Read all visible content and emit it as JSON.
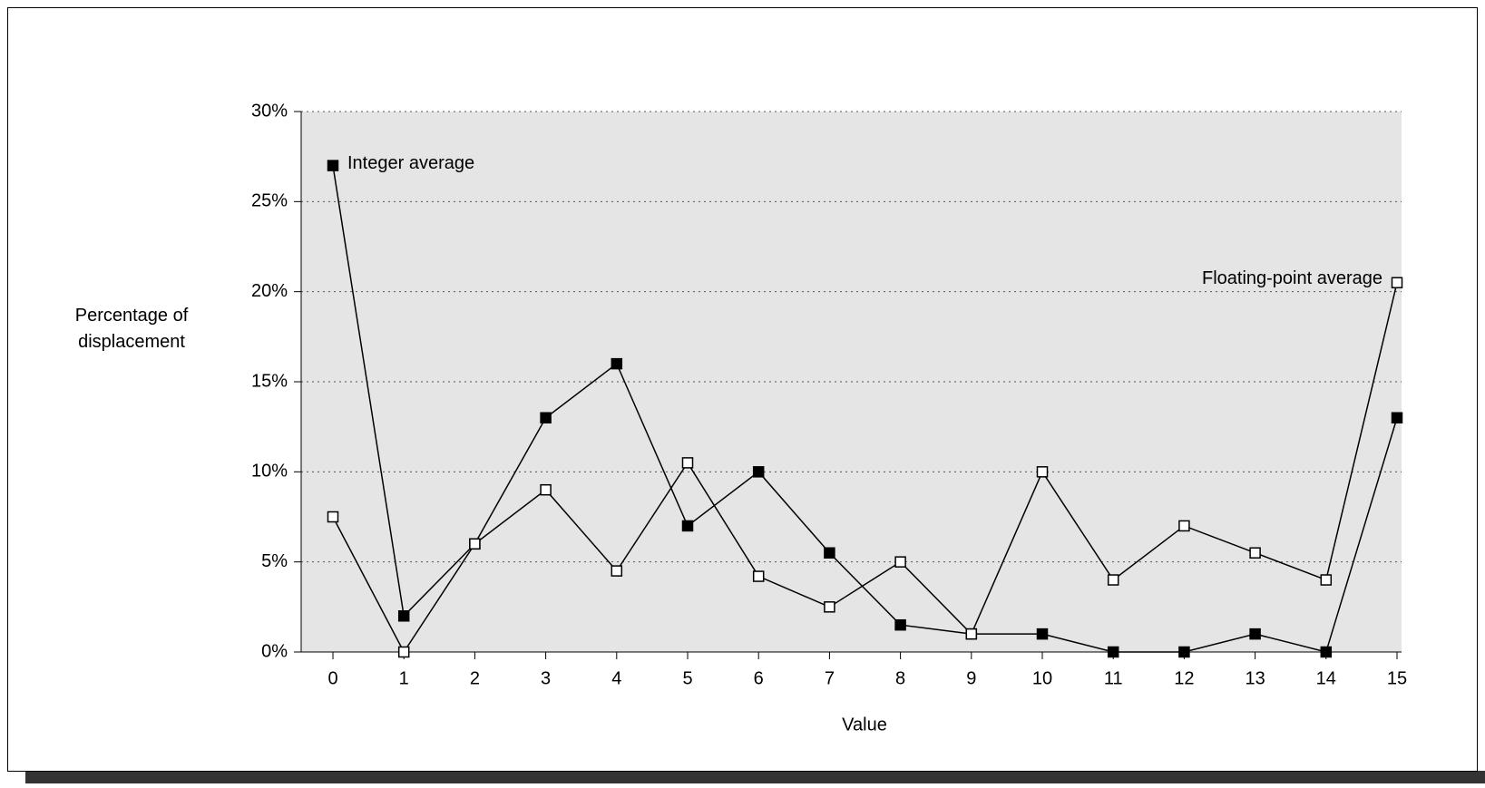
{
  "chart_data": {
    "type": "line",
    "y_label": "Percentage of displacement",
    "x_label": "Value",
    "x": [
      0,
      1,
      2,
      3,
      4,
      5,
      6,
      7,
      8,
      9,
      10,
      11,
      12,
      13,
      14,
      15
    ],
    "xlim": [
      0,
      15
    ],
    "xticks": [
      0,
      1,
      2,
      3,
      4,
      5,
      6,
      7,
      8,
      9,
      10,
      11,
      12,
      13,
      14,
      15
    ],
    "ylim": [
      0,
      30
    ],
    "yticks": [
      {
        "value": 0,
        "label": "0%"
      },
      {
        "value": 5,
        "label": "5%"
      },
      {
        "value": 10,
        "label": "10%"
      },
      {
        "value": 15,
        "label": "15%"
      },
      {
        "value": 20,
        "label": "20%"
      },
      {
        "value": 25,
        "label": "25%"
      },
      {
        "value": 30,
        "label": "30%"
      }
    ],
    "grid": true,
    "series": [
      {
        "name": "Integer average",
        "color": "#000000",
        "values": [
          27,
          2,
          6,
          13,
          16,
          7,
          10,
          5.5,
          1.5,
          1,
          1,
          0,
          0,
          1,
          0,
          13
        ]
      },
      {
        "name": "Floating-point average",
        "color": "#ffffff",
        "values": [
          7.5,
          0,
          6,
          9,
          4.5,
          10.5,
          4.2,
          2.5,
          5,
          1,
          10,
          4,
          7,
          5.5,
          4,
          20.5
        ]
      }
    ]
  }
}
